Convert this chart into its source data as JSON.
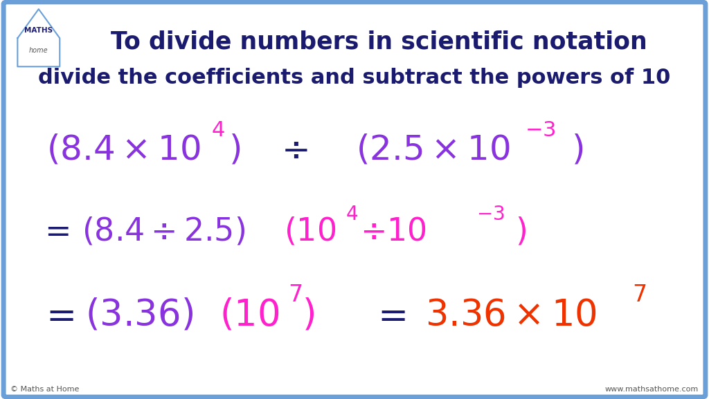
{
  "bg_color": "#ffffff",
  "border_color": "#6a9fd8",
  "title_line1": "To divide numbers in scientific notation",
  "title_line2": "divide the coefficients and subtract the powers of 10",
  "purple": "#8833dd",
  "magenta": "#ff22cc",
  "red_orange": "#ee3300",
  "dark_blue": "#1a1a6e",
  "footer_left": "© Maths at Home",
  "footer_right": "www.mathsathome.com"
}
